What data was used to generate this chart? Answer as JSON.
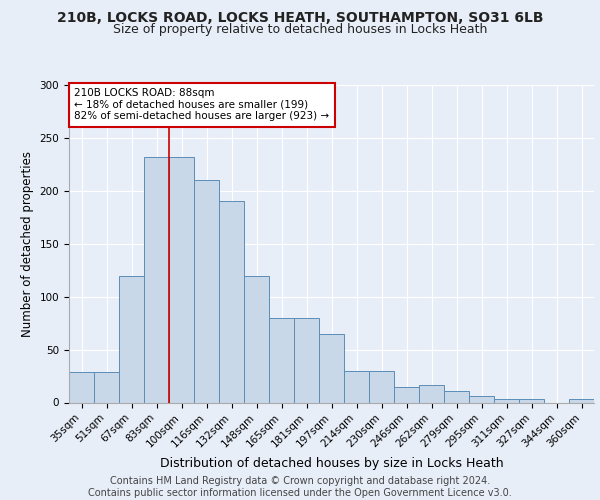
{
  "title_line1": "210B, LOCKS ROAD, LOCKS HEATH, SOUTHAMPTON, SO31 6LB",
  "title_line2": "Size of property relative to detached houses in Locks Heath",
  "xlabel": "Distribution of detached houses by size in Locks Heath",
  "ylabel": "Number of detached properties",
  "footnote1": "Contains HM Land Registry data © Crown copyright and database right 2024.",
  "footnote2": "Contains public sector information licensed under the Open Government Licence v3.0.",
  "bar_labels": [
    "35sqm",
    "51sqm",
    "67sqm",
    "83sqm",
    "100sqm",
    "116sqm",
    "132sqm",
    "148sqm",
    "165sqm",
    "181sqm",
    "197sqm",
    "214sqm",
    "230sqm",
    "246sqm",
    "262sqm",
    "279sqm",
    "295sqm",
    "311sqm",
    "327sqm",
    "344sqm",
    "360sqm"
  ],
  "bar_values": [
    29,
    29,
    120,
    232,
    232,
    210,
    190,
    120,
    80,
    80,
    65,
    30,
    30,
    15,
    17,
    11,
    6,
    3,
    3,
    0,
    3
  ],
  "bar_color": "#c8d8e8",
  "bar_edgecolor": "#5b8db8",
  "vline_x": 3.5,
  "vline_color": "#cc0000",
  "annotation_text": "210B LOCKS ROAD: 88sqm\n← 18% of detached houses are smaller (199)\n82% of semi-detached houses are larger (923) →",
  "annotation_box_edgecolor": "#cc0000",
  "annotation_box_facecolor": "#ffffff",
  "ylim": [
    0,
    300
  ],
  "yticks": [
    0,
    50,
    100,
    150,
    200,
    250,
    300
  ],
  "background_color": "#e8eef8",
  "axes_facecolor": "#e8eef8",
  "grid_color": "#ffffff",
  "title_fontsize": 10,
  "subtitle_fontsize": 9,
  "xlabel_fontsize": 9,
  "ylabel_fontsize": 8.5,
  "tick_fontsize": 7.5,
  "annotation_fontsize": 7.5,
  "footnote_fontsize": 7
}
